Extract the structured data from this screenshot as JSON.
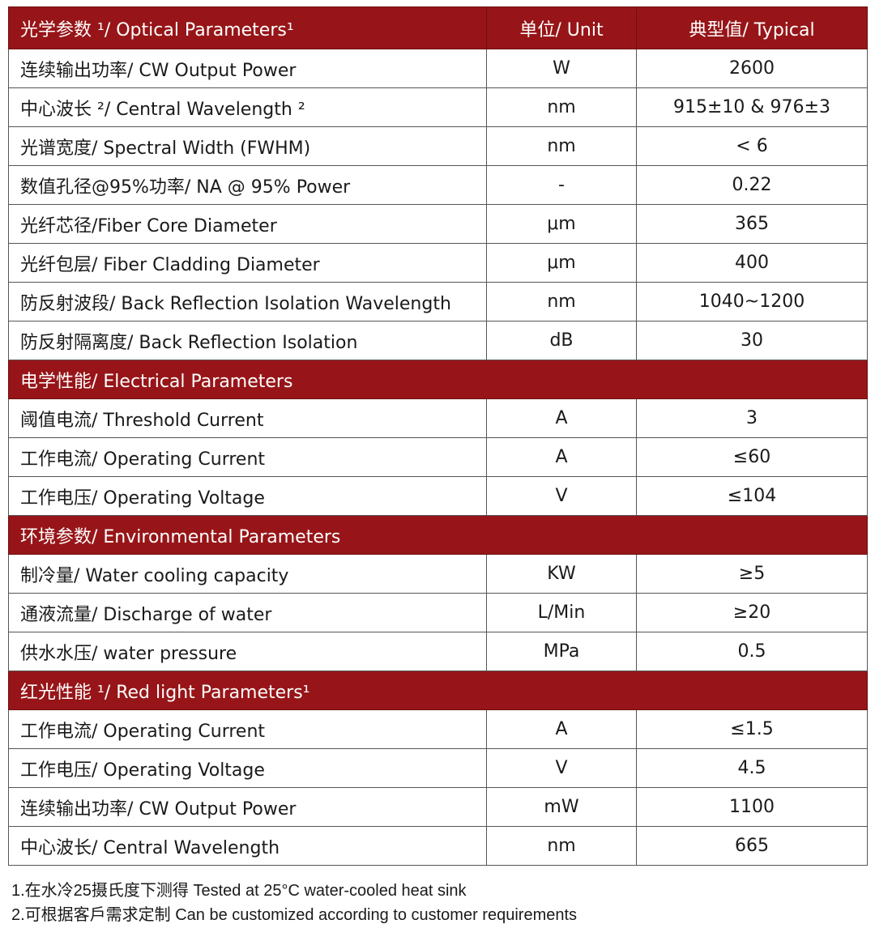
{
  "header": {
    "param": "光学参数 ¹/ Optical Parameters¹",
    "unit": "单位/ Unit",
    "typical": "典型值/ Typical"
  },
  "colors": {
    "section_bg": "#971518",
    "section_text": "#ffffff"
  },
  "optical": [
    {
      "param": "连续输出功率/ CW Output Power",
      "unit": "W",
      "value": "2600"
    },
    {
      "param": "中心波长 ²/ Central Wavelength ²",
      "unit": "nm",
      "value": "915±10 & 976±3"
    },
    {
      "param": "光谱宽度/ Spectral Width (FWHM)",
      "unit": "nm",
      "value": "< 6"
    },
    {
      "param": "数值孔径@95%功率/ NA @ 95% Power",
      "unit": "-",
      "value": "0.22"
    },
    {
      "param": "光纤芯径/Fiber Core Diameter",
      "unit": "μm",
      "value": "365"
    },
    {
      "param": "光纤包层/ Fiber Cladding Diameter",
      "unit": "μm",
      "value": "400"
    },
    {
      "param": "防反射波段/ Back Reflection Isolation Wavelength",
      "unit": "nm",
      "value": "1040~1200"
    },
    {
      "param": "防反射隔离度/ Back Reflection Isolation",
      "unit": "dB",
      "value": "30"
    }
  ],
  "electrical": {
    "title": "电学性能/ Electrical Parameters",
    "rows": [
      {
        "param": "阈值电流/ Threshold Current",
        "unit": "A",
        "value": "3"
      },
      {
        "param": "工作电流/ Operating Current",
        "unit": "A",
        "value": "≤60"
      },
      {
        "param": "工作电压/ Operating Voltage",
        "unit": "V",
        "value": "≤104"
      }
    ]
  },
  "environmental": {
    "title": "环境参数/ Environmental Parameters",
    "rows": [
      {
        "param": "制冷量/ Water cooling capacity",
        "unit": "KW",
        "value": "≥5"
      },
      {
        "param": "通液流量/ Discharge of water",
        "unit": "L/Min",
        "value": "≥20"
      },
      {
        "param": "供水水压/ water pressure",
        "unit": "MPa",
        "value": "0.5"
      }
    ]
  },
  "redlight": {
    "title": "红光性能 ¹/ Red light Parameters¹",
    "rows": [
      {
        "param": "工作电流/ Operating Current",
        "unit": "A",
        "value": "≤1.5"
      },
      {
        "param": "工作电压/ Operating Voltage",
        "unit": "V",
        "value": "4.5"
      },
      {
        "param": "连续输出功率/ CW Output Power",
        "unit": "mW",
        "value": "1100"
      },
      {
        "param": "中心波长/ Central Wavelength",
        "unit": "nm",
        "value": "665"
      }
    ]
  },
  "notes": [
    "1.在水冷25摄氏度下测得 Tested at 25°C water-cooled heat sink",
    "2.可根据客戶需求定制 Can be customized according to customer requirements"
  ]
}
